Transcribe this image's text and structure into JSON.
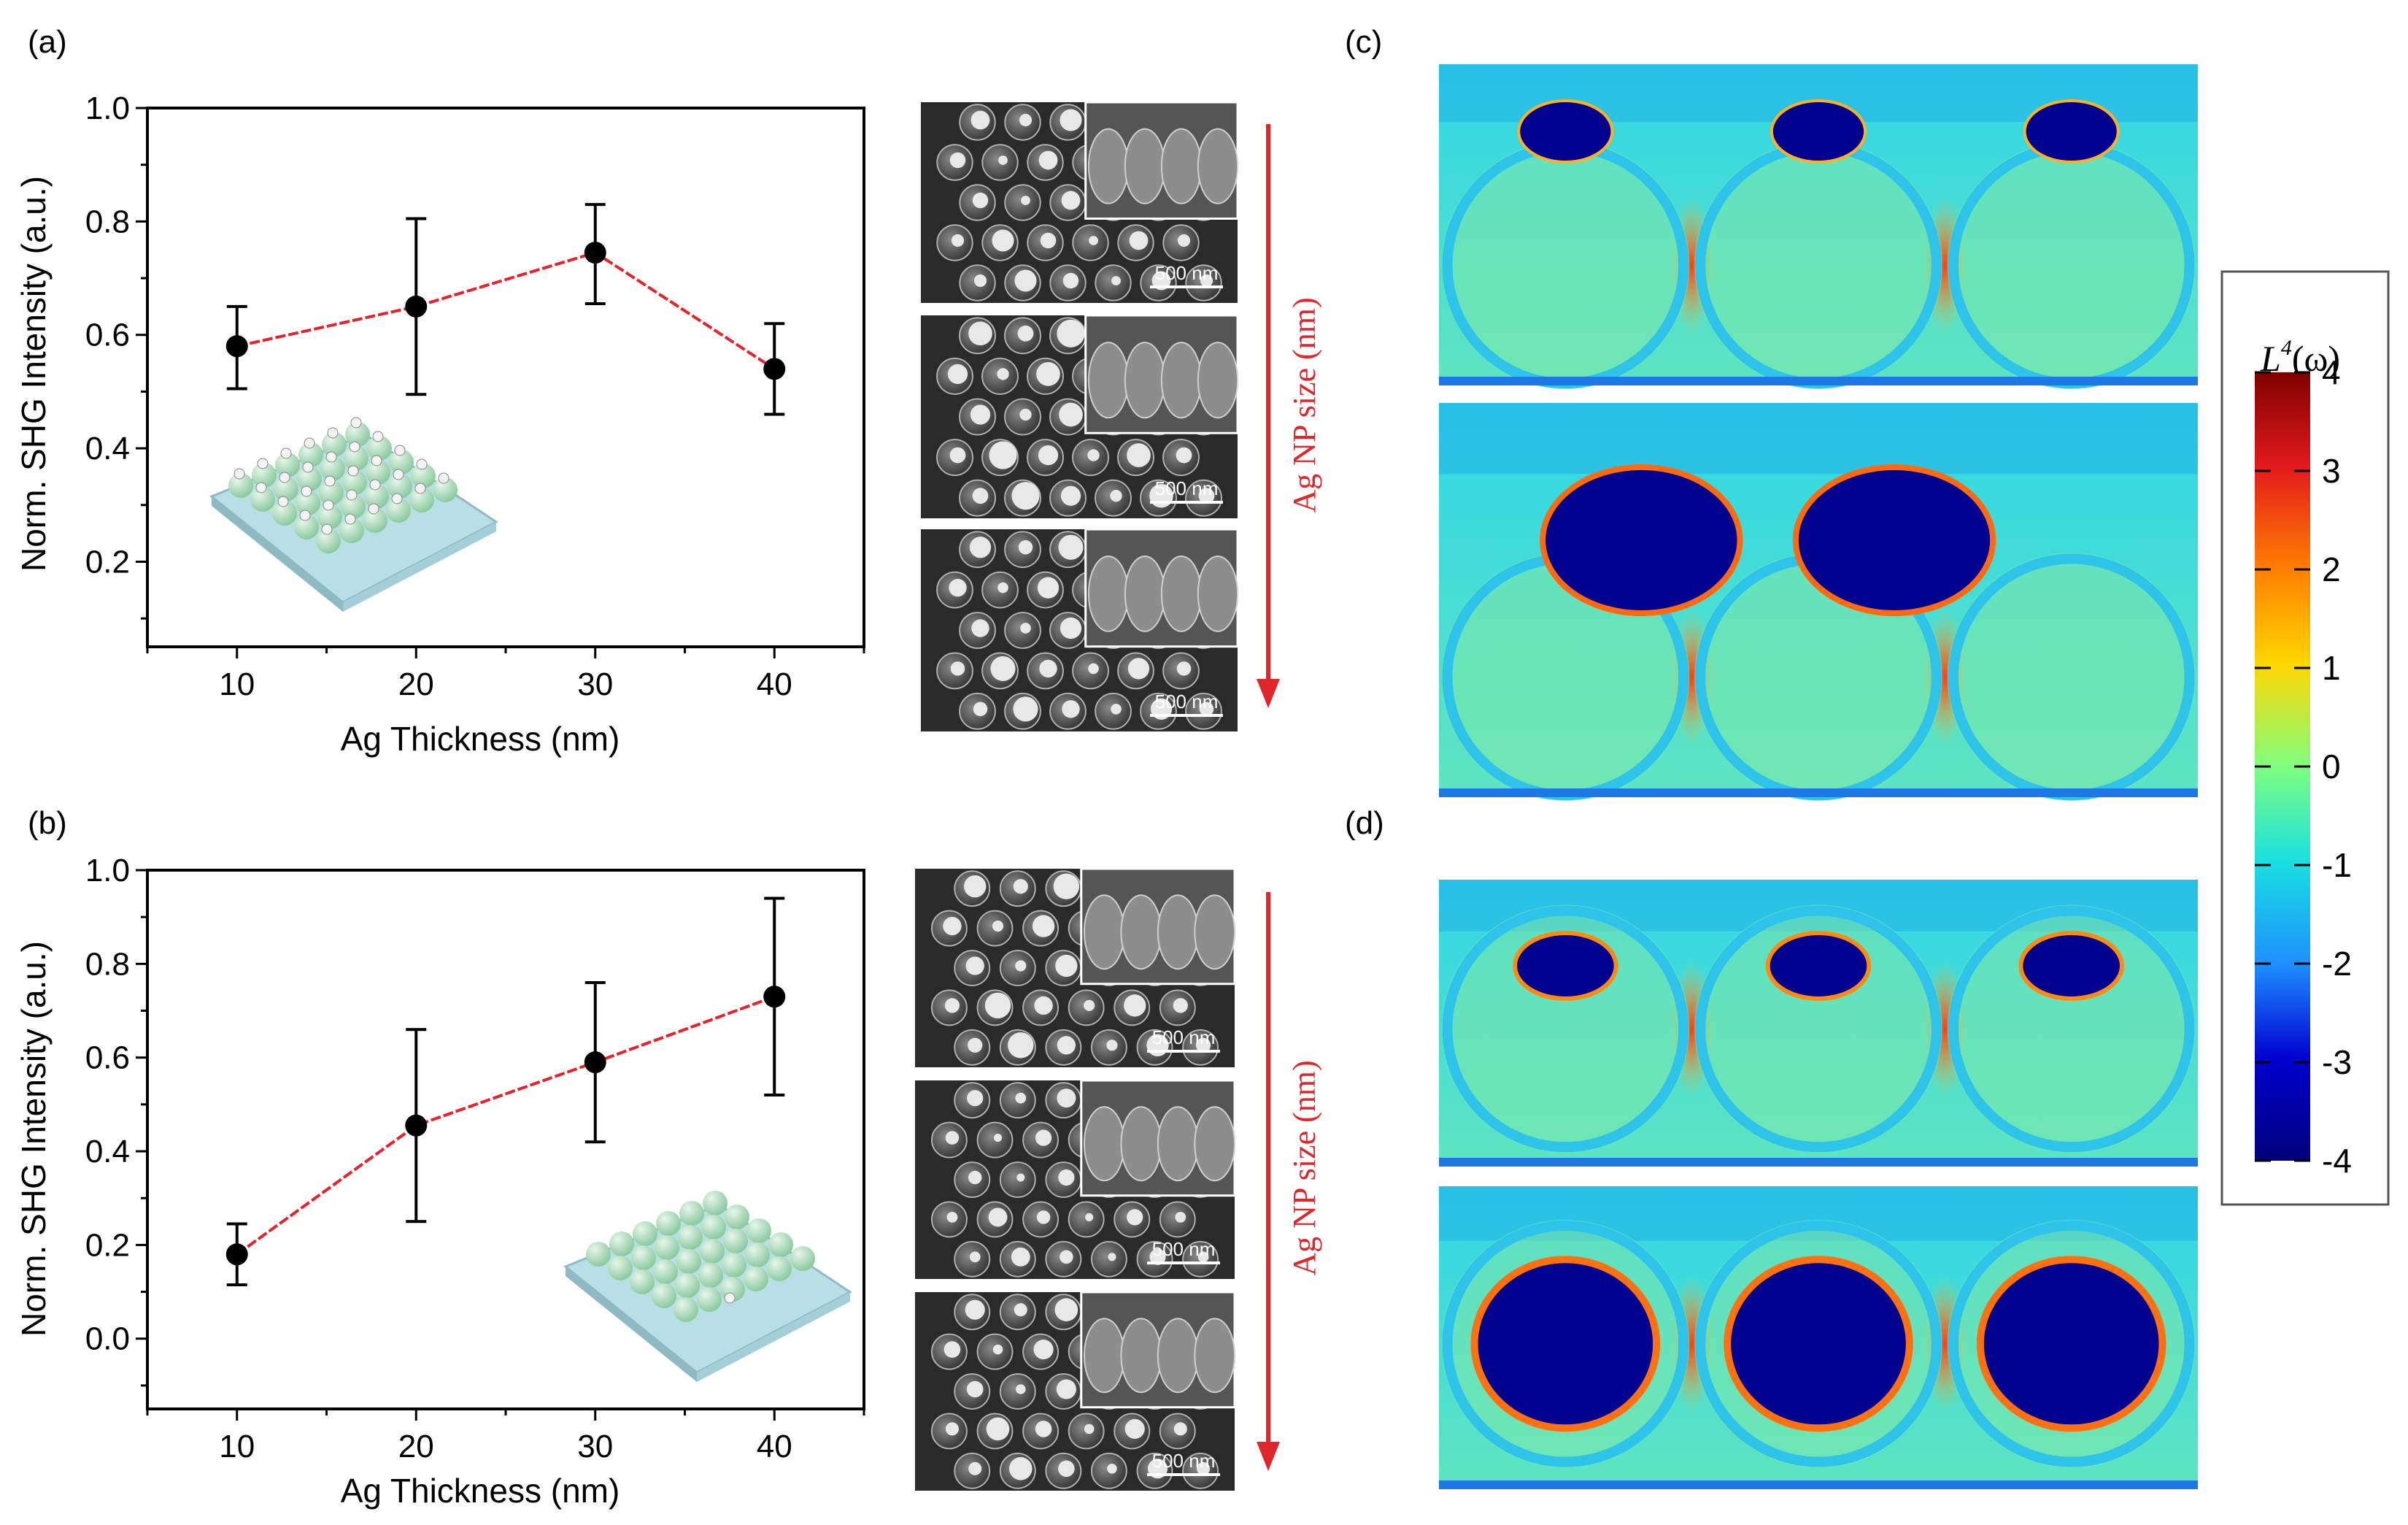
{
  "panel_labels": {
    "a": "(a)",
    "b": "(b)",
    "c": "(c)",
    "d": "(d)"
  },
  "sem": {
    "scale_bar": "500 nm",
    "arrow_label": "Ag NP size (nm)"
  },
  "colorbar": {
    "title": "L",
    "title_sup": "4",
    "title_tail": "(ω)",
    "ticks": [
      "4",
      "3",
      "2",
      "1",
      "0",
      "-1",
      "-2",
      "-3",
      "-4"
    ]
  },
  "colors": {
    "line": "#e8222a",
    "marker": "#000000",
    "arrow": "#e0262b",
    "field_background": "#5fe5c0",
    "field_hot": "#f7c02a"
  },
  "chart_data": [
    {
      "type": "line",
      "panel": "a",
      "title": "",
      "xlabel": "Ag Thickness (nm)",
      "ylabel": "Norm. SHG Intensity (a.u.)",
      "xlim": [
        5,
        45
      ],
      "ylim": [
        0.05,
        1.0
      ],
      "xticks": [
        10,
        20,
        30,
        40
      ],
      "yticks": [
        0.2,
        0.4,
        0.6,
        0.8,
        1.0
      ],
      "xtick_labels": [
        "10",
        "20",
        "30",
        "40"
      ],
      "ytick_labels": [
        "0.2",
        "0.4",
        "0.6",
        "0.8",
        "1.0"
      ],
      "x": [
        10,
        20,
        30,
        40
      ],
      "y": [
        0.58,
        0.65,
        0.745,
        0.54
      ],
      "err_low": [
        0.505,
        0.495,
        0.655,
        0.46
      ],
      "err_high": [
        0.65,
        0.805,
        0.83,
        0.62
      ]
    },
    {
      "type": "line",
      "panel": "b",
      "title": "",
      "xlabel": "Ag Thickness (nm)",
      "ylabel": "Norm. SHG Intensity (a.u.)",
      "xlim": [
        5,
        45
      ],
      "ylim": [
        -0.15,
        1.0
      ],
      "xticks": [
        10,
        20,
        30,
        40
      ],
      "yticks": [
        0.0,
        0.2,
        0.4,
        0.6,
        0.8,
        1.0
      ],
      "xtick_labels": [
        "10",
        "20",
        "30",
        "40"
      ],
      "ytick_labels": [
        "0.0",
        "0.2",
        "0.4",
        "0.6",
        "0.8",
        "1.0"
      ],
      "x": [
        10,
        20,
        30,
        40
      ],
      "y": [
        0.18,
        0.455,
        0.59,
        0.73
      ],
      "err_low": [
        0.115,
        0.25,
        0.42,
        0.52
      ],
      "err_high": [
        0.245,
        0.66,
        0.76,
        0.94
      ]
    }
  ]
}
